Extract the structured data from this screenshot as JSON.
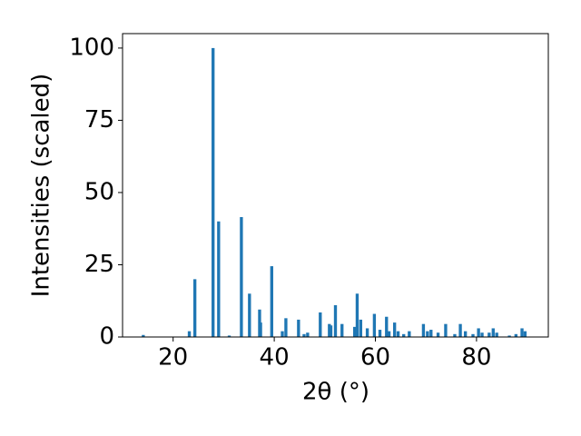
{
  "chart_data": {
    "type": "bar",
    "xlabel": "2θ (°)",
    "ylabel": "Intensities (scaled)",
    "color": "#1f77b4",
    "bar_width": 0.6,
    "x": [
      14.1,
      23.2,
      24.3,
      27.9,
      29.0,
      31.1,
      33.5,
      35.1,
      37.1,
      37.3,
      39.5,
      41.6,
      42.3,
      44.8,
      45.9,
      46.6,
      49.1,
      50.9,
      51.2,
      52.1,
      53.4,
      55.9,
      56.4,
      57.1,
      58.4,
      59.8,
      60.9,
      62.2,
      62.7,
      63.8,
      64.5,
      65.6,
      66.7,
      69.5,
      70.3,
      71.0,
      72.4,
      73.9,
      75.7,
      76.8,
      77.8,
      79.3,
      80.4,
      81.1,
      82.5,
      83.3,
      84.0,
      86.5,
      87.8,
      89.0,
      89.6
    ],
    "values": [
      0.7,
      2,
      20,
      100,
      40,
      0.5,
      41.5,
      15,
      9.5,
      5,
      24.5,
      2,
      6.5,
      6,
      1,
      1.5,
      8.5,
      4.5,
      4,
      11,
      4.5,
      3.5,
      15,
      6,
      3,
      8,
      2.5,
      7,
      2,
      5,
      2,
      1,
      2,
      4.5,
      2,
      2.5,
      1.5,
      4.5,
      1,
      4.5,
      2,
      1,
      3,
      1.5,
      1.5,
      3,
      1.5,
      0.5,
      1,
      3,
      2
    ],
    "xlim": [
      10,
      94.2
    ],
    "xticks": [
      20,
      40,
      60,
      80
    ],
    "ylim": [
      0,
      105
    ],
    "yticks": [
      0,
      25,
      50,
      75,
      100
    ]
  }
}
